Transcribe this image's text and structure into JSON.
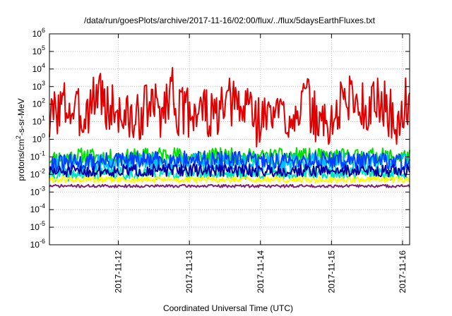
{
  "chart_data": {
    "type": "line",
    "title": "/data/run/goesPlots/archive/2017-11-16/02:00/flux/../flux/5daysEarthFluxes.txt",
    "xlabel": "Coordinated Universal Time (UTC)",
    "ylabel": "protons/cm²-s-sr-MeV",
    "yscale": "log",
    "ylim": [
      1e-06,
      1000000.0
    ],
    "xlim": [
      11.03,
      16.1
    ],
    "y_ticks": [
      {
        "value": 1e-06,
        "base": "10",
        "exp": "-6"
      },
      {
        "value": 1e-05,
        "base": "10",
        "exp": "-5"
      },
      {
        "value": 0.0001,
        "base": "10",
        "exp": "-4"
      },
      {
        "value": 0.001,
        "base": "10",
        "exp": "-3"
      },
      {
        "value": 0.01,
        "base": "10",
        "exp": "-2"
      },
      {
        "value": 0.1,
        "base": "10",
        "exp": "-1"
      },
      {
        "value": 1,
        "base": "10",
        "exp": "0"
      },
      {
        "value": 10,
        "base": "10",
        "exp": "1"
      },
      {
        "value": 100,
        "base": "10",
        "exp": "2"
      },
      {
        "value": 1000,
        "base": "10",
        "exp": "3"
      },
      {
        "value": 10000,
        "base": "10",
        "exp": "4"
      },
      {
        "value": 100000,
        "base": "10",
        "exp": "5"
      },
      {
        "value": 1000000,
        "base": "10",
        "exp": "6"
      }
    ],
    "x_ticks": [
      {
        "value": 12,
        "label": "2017-11-12"
      },
      {
        "value": 13,
        "label": "2017-11-13"
      },
      {
        "value": 14,
        "label": "2017-11-14"
      },
      {
        "value": 15,
        "label": "2017-11-15"
      },
      {
        "value": 16,
        "label": "2017-11-16"
      }
    ],
    "grid": true,
    "series": [
      {
        "color": "#e00000",
        "base": 30,
        "jitter": 1.5,
        "seed": 3,
        "anchors": [
          [
            11.03,
            8
          ],
          [
            11.1,
            40
          ],
          [
            11.25,
            100
          ],
          [
            11.35,
            40
          ],
          [
            11.5,
            20
          ],
          [
            11.6,
            100
          ],
          [
            11.75,
            1100
          ],
          [
            11.82,
            30
          ],
          [
            11.9,
            80
          ],
          [
            12.0,
            30
          ],
          [
            12.15,
            15
          ],
          [
            12.25,
            8
          ],
          [
            12.35,
            60
          ],
          [
            12.5,
            80
          ],
          [
            12.62,
            30
          ],
          [
            12.7,
            300
          ],
          [
            12.75,
            1400
          ],
          [
            12.85,
            30
          ],
          [
            13.0,
            40
          ],
          [
            13.2,
            60
          ],
          [
            13.3,
            15
          ],
          [
            13.5,
            40
          ],
          [
            13.6,
            150
          ],
          [
            13.75,
            30
          ],
          [
            13.85,
            300
          ],
          [
            13.92,
            10
          ],
          [
            14.0,
            15
          ],
          [
            14.2,
            30
          ],
          [
            14.4,
            20
          ],
          [
            14.6,
            150
          ],
          [
            14.65,
            150
          ],
          [
            14.75,
            20
          ],
          [
            14.95,
            5
          ],
          [
            15.1,
            30
          ],
          [
            15.15,
            200
          ],
          [
            15.3,
            300
          ],
          [
            15.45,
            50
          ],
          [
            15.55,
            100
          ],
          [
            15.7,
            150
          ],
          [
            15.85,
            20
          ],
          [
            15.95,
            3
          ],
          [
            16.03,
            200
          ],
          [
            16.1,
            40
          ]
        ]
      },
      {
        "color": "#00e000",
        "base": 0.09,
        "jitter": 0.45,
        "seed": 11,
        "anchors": [
          [
            11.03,
            0.08
          ],
          [
            11.5,
            0.12
          ],
          [
            12.0,
            0.09
          ],
          [
            12.7,
            0.15
          ],
          [
            13.0,
            0.1
          ],
          [
            13.5,
            0.12
          ],
          [
            14.0,
            0.1
          ],
          [
            14.5,
            0.12
          ],
          [
            15.0,
            0.1
          ],
          [
            15.5,
            0.12
          ],
          [
            16.1,
            0.1
          ]
        ]
      },
      {
        "color": "#00c0ff",
        "base": 0.04,
        "jitter": 0.55,
        "seed": 21,
        "anchors": [
          [
            11.03,
            0.035
          ],
          [
            12.0,
            0.045
          ],
          [
            13.0,
            0.05
          ],
          [
            14.0,
            0.045
          ],
          [
            15.0,
            0.05
          ],
          [
            16.1,
            0.04
          ]
        ]
      },
      {
        "color": "#0040ff",
        "base": 0.05,
        "jitter": 0.5,
        "seed": 31,
        "anchors": [
          [
            11.03,
            0.04
          ],
          [
            12.0,
            0.06
          ],
          [
            13.0,
            0.07
          ],
          [
            14.0,
            0.06
          ],
          [
            15.0,
            0.07
          ],
          [
            16.1,
            0.05
          ]
        ]
      },
      {
        "color": "#00e0c0",
        "base": 0.01,
        "jitter": 0.35,
        "seed": 41,
        "anchors": [
          [
            11.03,
            0.009
          ],
          [
            12.0,
            0.011
          ],
          [
            13.0,
            0.012
          ],
          [
            14.0,
            0.011
          ],
          [
            15.0,
            0.012
          ],
          [
            16.1,
            0.01
          ]
        ]
      },
      {
        "color": "#0000a0",
        "base": 0.015,
        "jitter": 0.35,
        "seed": 51,
        "anchors": [
          [
            11.03,
            0.014
          ],
          [
            12.0,
            0.016
          ],
          [
            13.0,
            0.018
          ],
          [
            14.0,
            0.016
          ],
          [
            15.0,
            0.017
          ],
          [
            16.1,
            0.016
          ]
        ]
      },
      {
        "color": "#ffff00",
        "base": 0.005,
        "jitter": 0.18,
        "seed": 61,
        "anchors": [
          [
            11.03,
            0.005
          ],
          [
            16.1,
            0.005
          ]
        ]
      },
      {
        "color": "#802070",
        "base": 0.0022,
        "jitter": 0.08,
        "seed": 71,
        "anchors": [
          [
            11.03,
            0.0022
          ],
          [
            16.1,
            0.0022
          ]
        ]
      }
    ]
  }
}
